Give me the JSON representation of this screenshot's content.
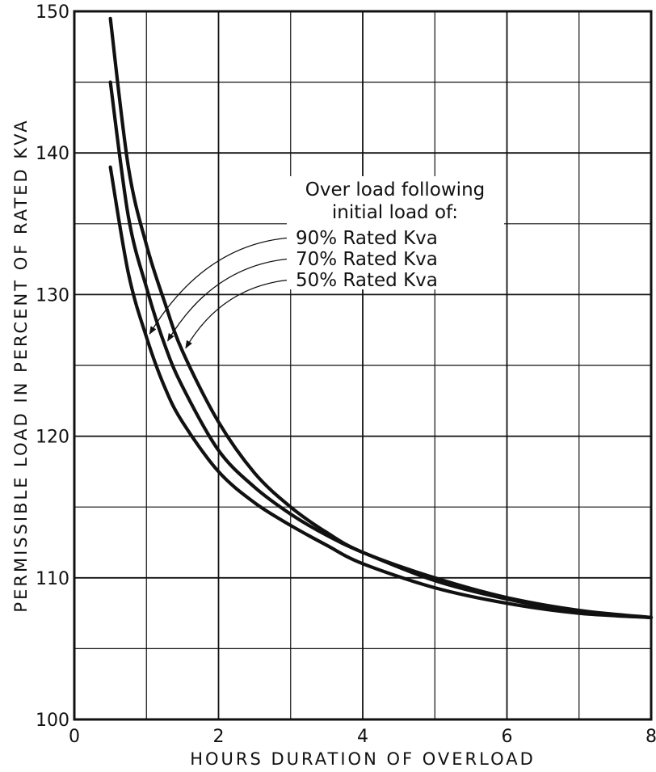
{
  "chart_data": {
    "type": "line",
    "xlabel": "HOURS DURATION OF OVERLOAD",
    "ylabel": "PERMISSIBLE LOAD IN PERCENT OF RATED KVA",
    "xlim": [
      0,
      8
    ],
    "ylim": [
      100,
      150
    ],
    "x_ticks": [
      0,
      2,
      4,
      6,
      8
    ],
    "y_ticks": [
      100,
      110,
      120,
      130,
      140,
      150
    ],
    "x_tick_labels": [
      "0",
      "2",
      "4",
      "6",
      "8"
    ],
    "y_tick_labels": [
      "100",
      "110",
      "120",
      "130",
      "140",
      "150"
    ],
    "grid": true,
    "legend_title": [
      "Over load following",
      "initial load of:"
    ],
    "series": [
      {
        "name": "90% Rated Kva",
        "x": [
          0.5,
          0.75,
          1.0,
          1.25,
          1.5,
          2.0,
          2.5,
          3.0,
          3.5,
          4.0,
          5.0,
          6.0,
          7.0,
          8.0
        ],
        "y": [
          139.0,
          131.5,
          127.0,
          123.5,
          121.0,
          117.5,
          115.3,
          113.7,
          112.3,
          111.0,
          109.3,
          108.2,
          107.5,
          107.2
        ]
      },
      {
        "name": "70% Rated Kva",
        "x": [
          0.5,
          0.75,
          1.0,
          1.25,
          1.5,
          2.0,
          2.5,
          3.0,
          3.5,
          4.0,
          5.0,
          6.0,
          7.0,
          8.0
        ],
        "y": [
          145.0,
          135.5,
          130.5,
          126.5,
          123.5,
          119.0,
          116.4,
          114.5,
          113.0,
          111.8,
          109.8,
          108.5,
          107.6,
          107.2
        ]
      },
      {
        "name": "50% Rated Kva",
        "x": [
          0.5,
          0.75,
          1.0,
          1.25,
          1.5,
          2.0,
          2.5,
          3.0,
          3.5,
          4.0,
          5.0,
          6.0,
          7.0,
          8.0
        ],
        "y": [
          149.5,
          139.0,
          133.5,
          129.5,
          126.0,
          121.0,
          117.4,
          115.0,
          113.2,
          111.8,
          110.0,
          108.6,
          107.7,
          107.2
        ]
      }
    ],
    "annotations": [
      {
        "label": "90% Rated Kva",
        "target": [
          1.0,
          127.0
        ]
      },
      {
        "label": "70% Rated Kva",
        "target": [
          1.25,
          126.5
        ]
      },
      {
        "label": "50% Rated Kva",
        "target": [
          1.5,
          126.0
        ]
      }
    ]
  }
}
